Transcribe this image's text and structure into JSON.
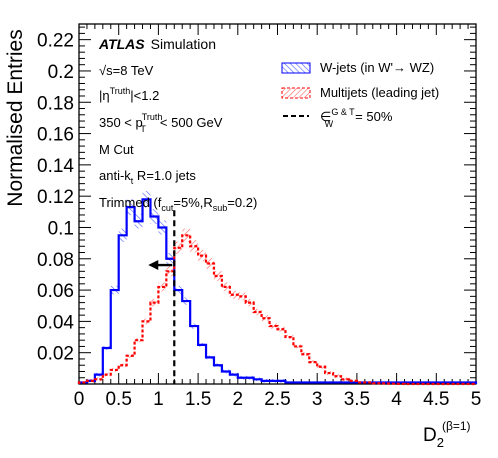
{
  "chart_data": {
    "type": "line",
    "xlabel": "D",
    "xlabel_sub": "2",
    "xlabel_sup": "(β=1)",
    "ylabel": "Normalised Entries",
    "xlim": [
      0,
      5
    ],
    "ylim": [
      0,
      0.23
    ],
    "x_ticks": [
      "0",
      "0.5",
      "1",
      "1.5",
      "2",
      "2.5",
      "3",
      "3.5",
      "4",
      "4.5",
      "5"
    ],
    "y_ticks": [
      "0.02",
      "0.04",
      "0.06",
      "0.08",
      "0.1",
      "0.12",
      "0.14",
      "0.16",
      "0.18",
      "0.2",
      "0.22"
    ],
    "grid": false,
    "bin_edges": [
      0,
      0.1,
      0.2,
      0.3,
      0.4,
      0.5,
      0.6,
      0.7,
      0.8,
      0.9,
      1.0,
      1.1,
      1.2,
      1.3,
      1.4,
      1.5,
      1.6,
      1.7,
      1.8,
      1.9,
      2.0,
      2.1,
      2.2,
      2.3,
      2.4,
      2.5,
      2.6,
      2.7,
      2.8,
      2.9,
      3.0,
      3.1,
      3.2,
      3.3,
      3.4,
      3.5,
      3.6,
      3.7,
      3.8,
      3.9,
      4.0,
      4.1,
      4.2,
      4.3,
      4.4,
      4.5,
      4.6,
      4.7,
      4.8,
      4.9,
      5.0
    ],
    "series": [
      {
        "name": "W-jets (in W'→ WZ)",
        "color": "#0000ff",
        "values": [
          0.001,
          0.002,
          0.006,
          0.023,
          0.06,
          0.095,
          0.113,
          0.104,
          0.118,
          0.107,
          0.1,
          0.08,
          0.06,
          0.053,
          0.037,
          0.025,
          0.017,
          0.012,
          0.008,
          0.006,
          0.004,
          0.004,
          0.003,
          0.002,
          0.002,
          0.002,
          0.001,
          0.001,
          0.001,
          0.001,
          0.001,
          0.001,
          0.001,
          0.001,
          0.001,
          0.001,
          0.001,
          0.001,
          0.001,
          0.001,
          0.001,
          0.001,
          0.001,
          0.001,
          0.001,
          0.001,
          0.001,
          0.001,
          0.001,
          0.001
        ]
      },
      {
        "name": "Multijets (leading jet)",
        "color": "#ff0000",
        "values": [
          0.001,
          0.002,
          0.003,
          0.006,
          0.009,
          0.012,
          0.018,
          0.028,
          0.04,
          0.052,
          0.062,
          0.072,
          0.087,
          0.095,
          0.088,
          0.082,
          0.077,
          0.069,
          0.062,
          0.057,
          0.056,
          0.052,
          0.046,
          0.042,
          0.037,
          0.035,
          0.03,
          0.024,
          0.019,
          0.014,
          0.011,
          0.007,
          0.005,
          0.003,
          0.002,
          0.001,
          0.001,
          0.0005,
          0.0003,
          0.0002,
          0.0001,
          0,
          0,
          0,
          0,
          0,
          0,
          0,
          0,
          0
        ]
      }
    ],
    "cut": {
      "x": 1.2,
      "label_prefix": "∈",
      "label_sup": "G & T",
      "label_sub": "W",
      "label_value": "= 50%",
      "arrow_direction": "left"
    },
    "legend_position": "top-right",
    "legend": {
      "w_label": "W-jets (in W'→ WZ)",
      "qcd_label": "Multijets (leading jet)",
      "cut_label": "= 50%"
    },
    "annotations": {
      "atlas": "ATLAS",
      "simulation": "Simulation",
      "energy": "√s=8 TeV",
      "eta": "|η",
      "eta_sup": "Truth",
      "eta_tail": "|<1.2",
      "pt_low": "350 < p",
      "pt_sub": "T",
      "pt_sup": "Truth",
      "pt_high": "< 500 GeV",
      "mcut": "M Cut",
      "antikt": "anti-k",
      "antikt_sub": "t",
      "antikt_tail": " R=1.0 jets",
      "trim_head": "Trimmed (f",
      "trim_fsub": "cut",
      "trim_mid": "=5%,R",
      "trim_rsub": "sub",
      "trim_tail": "=0.2)"
    }
  }
}
